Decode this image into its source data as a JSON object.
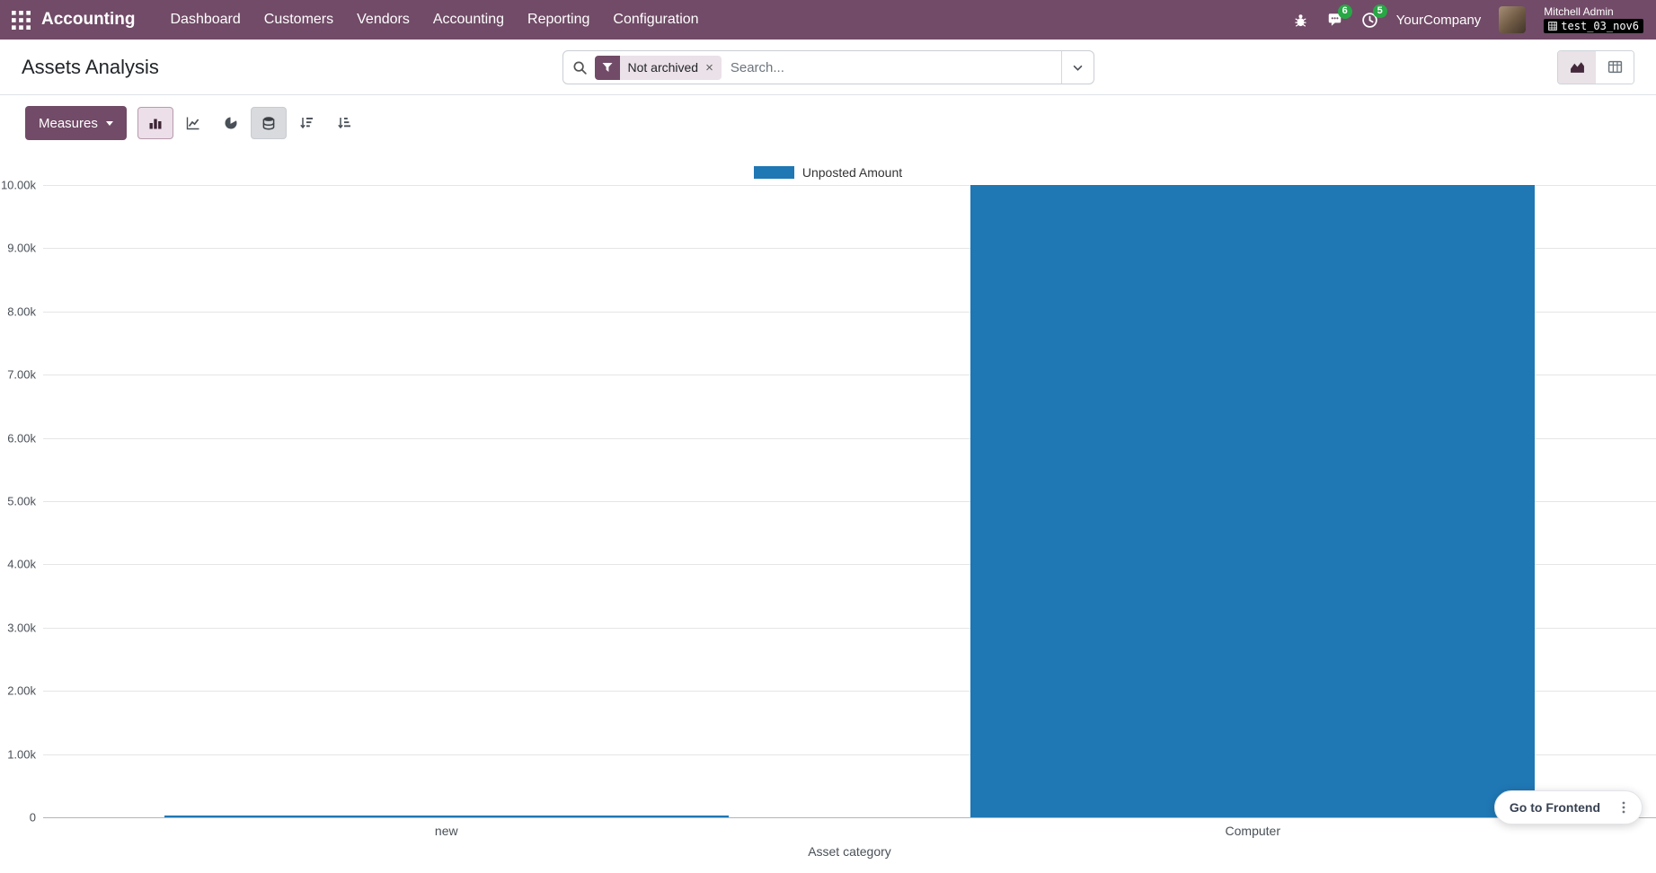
{
  "navbar": {
    "app_name": "Accounting",
    "menu_items": [
      "Dashboard",
      "Customers",
      "Vendors",
      "Accounting",
      "Reporting",
      "Configuration"
    ],
    "message_badge_count": "6",
    "activity_badge_count": "5",
    "company": "YourCompany",
    "user_name": "Mitchell Admin",
    "database_badge": "test_03_nov6"
  },
  "control_panel": {
    "title": "Assets Analysis",
    "search": {
      "filter_tag": "Not archived",
      "remove_symbol": "×",
      "placeholder": "Search..."
    }
  },
  "toolbar": {
    "measures_label": "Measures"
  },
  "chart_data": {
    "type": "bar",
    "title": "",
    "categories": [
      "new",
      "Computer"
    ],
    "series": [
      {
        "name": "Unposted Amount",
        "values": [
          35,
          10000
        ]
      }
    ],
    "xlabel": "Asset category",
    "ylabel": "",
    "ylim": [
      0,
      10000
    ],
    "y_ticks": [
      "10.00k",
      "9.00k",
      "8.00k",
      "7.00k",
      "6.00k",
      "5.00k",
      "4.00k",
      "3.00k",
      "2.00k",
      "1.00k",
      "0"
    ],
    "grid": true,
    "legend_position": "top",
    "bar_color": "#1f77b4"
  },
  "footer": {
    "go_to_frontend_label": "Go to Frontend"
  },
  "colors": {
    "brand": "#714B67",
    "bar": "#1f77b4",
    "badge_green": "#28a745"
  }
}
